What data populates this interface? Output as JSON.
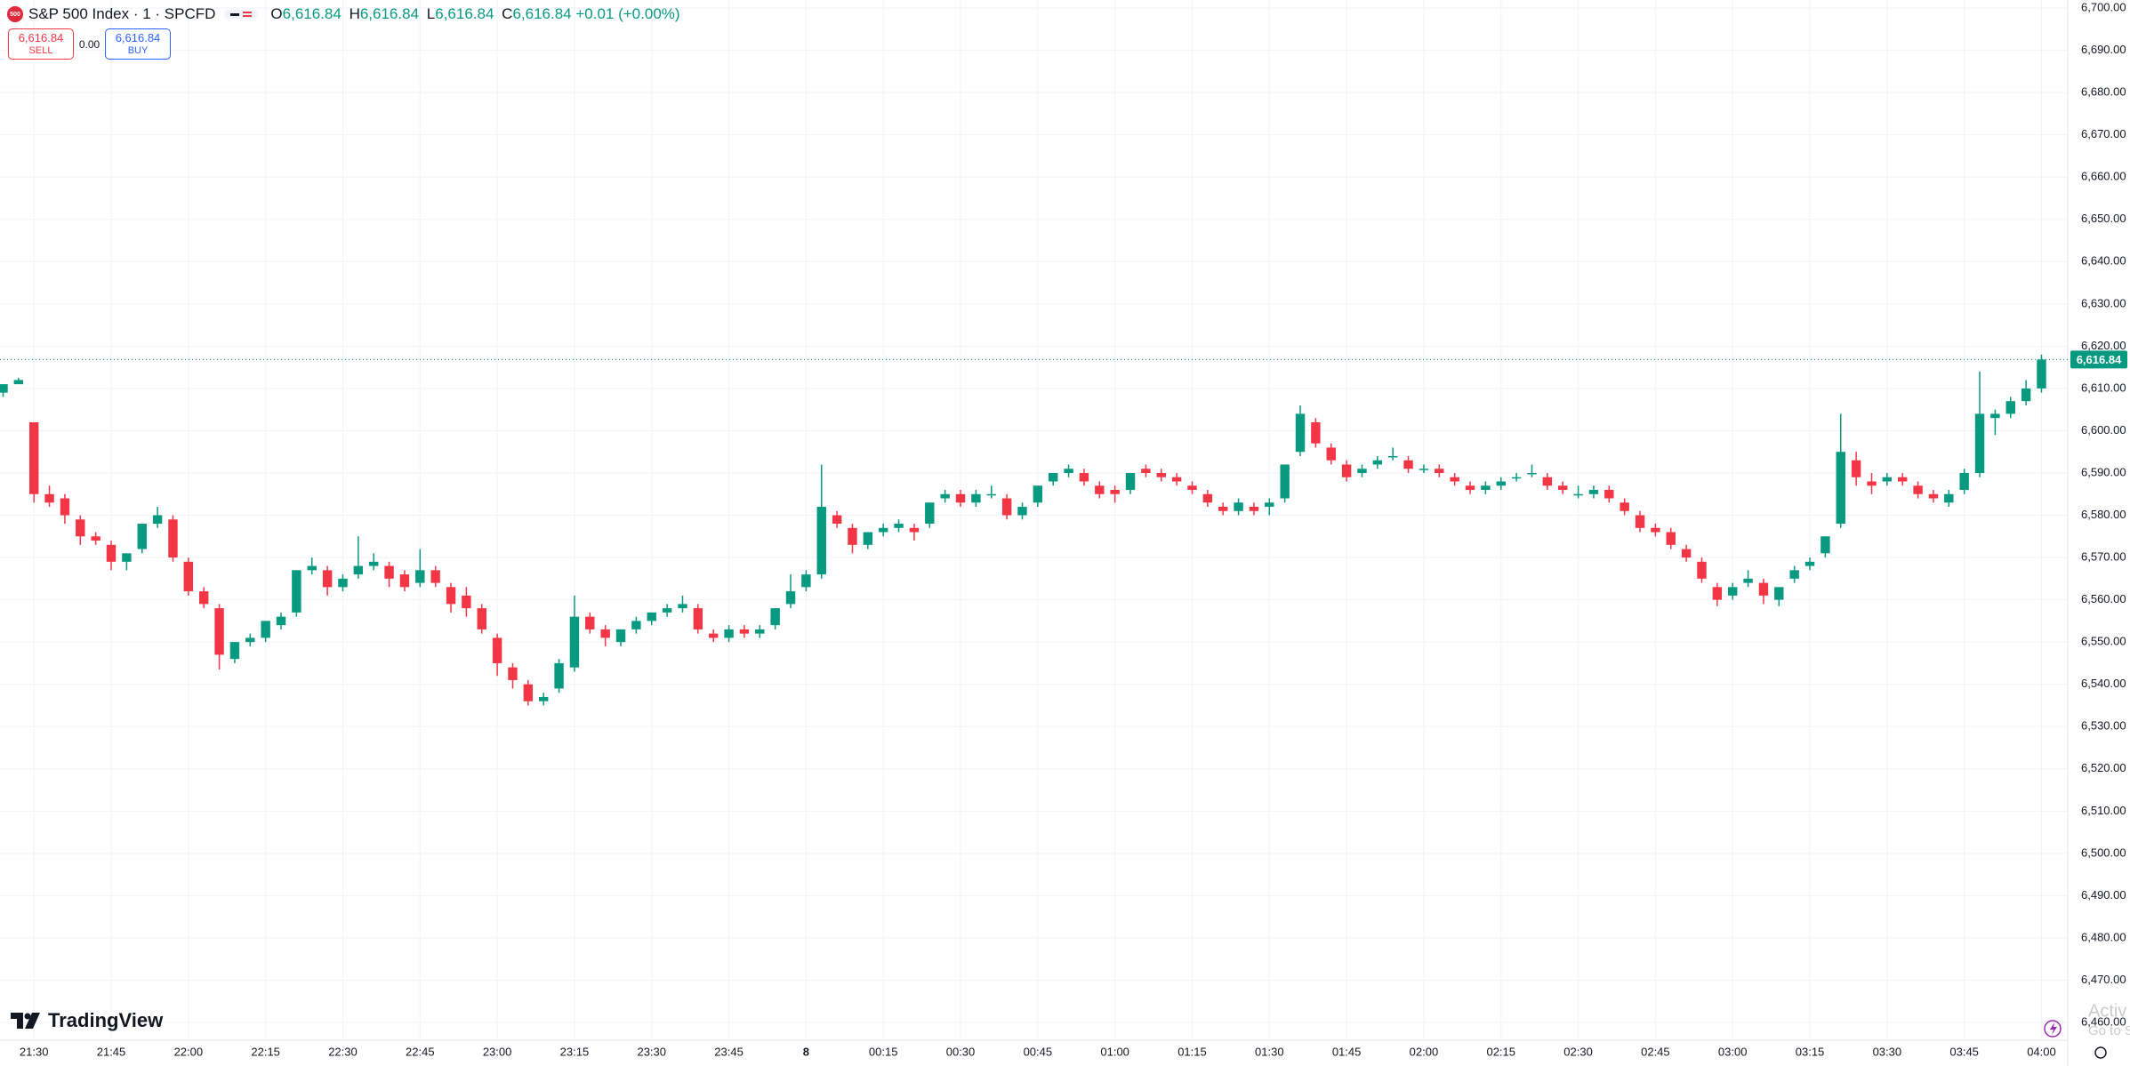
{
  "header": {
    "logo": "500",
    "symbol": "S&P 500 Index · 1 · SPCFD",
    "ohlc": [
      {
        "label": "O",
        "value": "6,616.84"
      },
      {
        "label": "H",
        "value": "6,616.84"
      },
      {
        "label": "L",
        "value": "6,616.84"
      },
      {
        "label": "C",
        "value": "6,616.84"
      }
    ],
    "change": "+0.01 (+0.00%)"
  },
  "trade": {
    "sell_price": "6,616.84",
    "sell": "SELL",
    "spread": "0.00",
    "buy_price": "6,616.84",
    "buy": "BUY"
  },
  "brand": "TradingView",
  "watermark": [
    "Activ",
    "Go to S"
  ],
  "chart_data": {
    "type": "candlestick",
    "up_color": "#089981",
    "down_color": "#f23645",
    "grid": true,
    "last_price": {
      "value": 6616.84,
      "label": "6,616.84"
    },
    "xlim": [
      -0.2,
      133.7
    ],
    "xticks": [
      {
        "value": 2,
        "label": "21:30"
      },
      {
        "value": 7,
        "label": "21:45"
      },
      {
        "value": 12,
        "label": "22:00"
      },
      {
        "value": 17,
        "label": "22:15"
      },
      {
        "value": 22,
        "label": "22:30"
      },
      {
        "value": 27,
        "label": "22:45"
      },
      {
        "value": 32,
        "label": "23:00"
      },
      {
        "value": 37,
        "label": "23:15"
      },
      {
        "value": 42,
        "label": "23:30"
      },
      {
        "value": 47,
        "label": "23:45"
      },
      {
        "value": 52,
        "label": "8"
      },
      {
        "value": 57,
        "label": "00:15"
      },
      {
        "value": 62,
        "label": "00:30"
      },
      {
        "value": 67,
        "label": "00:45"
      },
      {
        "value": 72,
        "label": "01:00"
      },
      {
        "value": 77,
        "label": "01:15"
      },
      {
        "value": 82,
        "label": "01:30"
      },
      {
        "value": 87,
        "label": "01:45"
      },
      {
        "value": 92,
        "label": "02:00"
      },
      {
        "value": 97,
        "label": "02:15"
      },
      {
        "value": 102,
        "label": "02:30"
      },
      {
        "value": 107,
        "label": "02:45"
      },
      {
        "value": 112,
        "label": "03:00"
      },
      {
        "value": 117,
        "label": "03:15"
      },
      {
        "value": 122,
        "label": "03:30"
      },
      {
        "value": 127,
        "label": "03:45"
      },
      {
        "value": 132,
        "label": "04:00"
      }
    ],
    "ylim": [
      6455.8,
      6701.9
    ],
    "yticks": [
      {
        "value": 6460,
        "label": "6,460.00"
      },
      {
        "value": 6470,
        "label": "6,470.00"
      },
      {
        "value": 6480,
        "label": "6,480.00"
      },
      {
        "value": 6490,
        "label": "6,490.00"
      },
      {
        "value": 6500,
        "label": "6,500.00"
      },
      {
        "value": 6510,
        "label": "6,510.00"
      },
      {
        "value": 6520,
        "label": "6,520.00"
      },
      {
        "value": 6530,
        "label": "6,530.00"
      },
      {
        "value": 6540,
        "label": "6,540.00"
      },
      {
        "value": 6550,
        "label": "6,550.00"
      },
      {
        "value": 6560,
        "label": "6,560.00"
      },
      {
        "value": 6570,
        "label": "6,570.00"
      },
      {
        "value": 6580,
        "label": "6,580.00"
      },
      {
        "value": 6590,
        "label": "6,590.00"
      },
      {
        "value": 6600,
        "label": "6,600.00"
      },
      {
        "value": 6610,
        "label": "6,610.00"
      },
      {
        "value": 6620,
        "label": "6,620.00"
      },
      {
        "value": 6630,
        "label": "6,630.00"
      },
      {
        "value": 6640,
        "label": "6,640.00"
      },
      {
        "value": 6650,
        "label": "6,650.00"
      },
      {
        "value": 6660,
        "label": "6,660.00"
      },
      {
        "value": 6670,
        "label": "6,670.00"
      },
      {
        "value": 6680,
        "label": "6,680.00"
      },
      {
        "value": 6690,
        "label": "6,690.00"
      },
      {
        "value": 6700,
        "label": "6,700.00"
      }
    ],
    "values": [
      [
        6609,
        6611,
        6608,
        6611
      ],
      [
        6611,
        6612.5,
        6611,
        6612
      ],
      [
        6602,
        6602,
        6583,
        6585
      ],
      [
        6585,
        6587,
        6582,
        6583
      ],
      [
        6584,
        6585,
        6578,
        6580
      ],
      [
        6579,
        6580,
        6573,
        6575
      ],
      [
        6575,
        6576,
        6573,
        6574
      ],
      [
        6573,
        6574,
        6567,
        6569
      ],
      [
        6569,
        6571,
        6567,
        6571
      ],
      [
        6572,
        6578,
        6571,
        6578
      ],
      [
        6578,
        6582,
        6577,
        6580
      ],
      [
        6579,
        6580,
        6569,
        6570
      ],
      [
        6569,
        6570,
        6561,
        6562
      ],
      [
        6562,
        6563,
        6558,
        6559
      ],
      [
        6558,
        6559,
        6543.5,
        6547
      ],
      [
        6546,
        6550,
        6545,
        6550
      ],
      [
        6550,
        6552,
        6549,
        6551
      ],
      [
        6551,
        6555,
        6550,
        6555
      ],
      [
        6554,
        6557,
        6553,
        6556
      ],
      [
        6557,
        6567,
        6556,
        6567
      ],
      [
        6567,
        6570,
        6566,
        6568
      ],
      [
        6567,
        6568,
        6561,
        6563
      ],
      [
        6563,
        6566,
        6562,
        6565
      ],
      [
        6566,
        6575,
        6565,
        6568
      ],
      [
        6568,
        6571,
        6567,
        6569
      ],
      [
        6568,
        6569,
        6563,
        6565
      ],
      [
        6566,
        6567,
        6562,
        6563
      ],
      [
        6564,
        6572,
        6563,
        6567
      ],
      [
        6567,
        6568,
        6563,
        6564
      ],
      [
        6563,
        6564,
        6557,
        6559
      ],
      [
        6561,
        6563,
        6556,
        6558
      ],
      [
        6558,
        6559,
        6552,
        6553
      ],
      [
        6551,
        6552,
        6542,
        6545
      ],
      [
        6544,
        6545,
        6539,
        6541
      ],
      [
        6540,
        6541,
        6535,
        6536
      ],
      [
        6536,
        6538,
        6535,
        6537
      ],
      [
        6539,
        6546,
        6538,
        6545
      ],
      [
        6544,
        6561,
        6543,
        6556
      ],
      [
        6556,
        6557,
        6552,
        6553
      ],
      [
        6553,
        6554,
        6549,
        6551
      ],
      [
        6550,
        6553,
        6549,
        6553
      ],
      [
        6553,
        6556,
        6552,
        6555
      ],
      [
        6555,
        6557,
        6554,
        6557
      ],
      [
        6557,
        6559,
        6556,
        6558
      ],
      [
        6558,
        6561,
        6557,
        6559
      ],
      [
        6558,
        6559,
        6552,
        6553
      ],
      [
        6552,
        6553,
        6550,
        6551
      ],
      [
        6551,
        6554,
        6550,
        6553
      ],
      [
        6553,
        6554,
        6551,
        6552
      ],
      [
        6552,
        6554,
        6551,
        6553
      ],
      [
        6554,
        6558,
        6553,
        6558
      ],
      [
        6559,
        6566,
        6558,
        6562
      ],
      [
        6563,
        6567,
        6562,
        6566
      ],
      [
        6566,
        6592,
        6565,
        6582
      ],
      [
        6580,
        6581,
        6577,
        6578
      ],
      [
        6577,
        6578,
        6571,
        6573
      ],
      [
        6573,
        6576,
        6572,
        6576
      ],
      [
        6576,
        6578,
        6575,
        6577
      ],
      [
        6577,
        6579,
        6576,
        6578
      ],
      [
        6577,
        6578,
        6574,
        6576
      ],
      [
        6578,
        6583,
        6577,
        6583
      ],
      [
        6584,
        6586,
        6583,
        6585
      ],
      [
        6585,
        6586,
        6582,
        6583
      ],
      [
        6583,
        6586,
        6582,
        6585
      ],
      [
        6585,
        6587,
        6584,
        6585
      ],
      [
        6584,
        6585,
        6579,
        6580
      ],
      [
        6580,
        6583,
        6579,
        6582
      ],
      [
        6583,
        6587,
        6582,
        6587
      ],
      [
        6588,
        6590,
        6587,
        6590
      ],
      [
        6590,
        6592,
        6589,
        6591
      ],
      [
        6590,
        6591,
        6587,
        6588
      ],
      [
        6587,
        6588,
        6584,
        6585
      ],
      [
        6586,
        6587,
        6583,
        6585
      ],
      [
        6586,
        6590,
        6585,
        6590
      ],
      [
        6591,
        6592,
        6589,
        6590
      ],
      [
        6590,
        6591,
        6588,
        6589
      ],
      [
        6589,
        6590,
        6587,
        6588
      ],
      [
        6587,
        6588,
        6585,
        6586
      ],
      [
        6585,
        6586,
        6582,
        6583
      ],
      [
        6582,
        6583,
        6580,
        6581
      ],
      [
        6581,
        6584,
        6580,
        6583
      ],
      [
        6582,
        6583,
        6580,
        6581
      ],
      [
        6582,
        6584,
        6580,
        6583
      ],
      [
        6584,
        6592,
        6583,
        6592
      ],
      [
        6595,
        6606,
        6594,
        6604
      ],
      [
        6602,
        6603,
        6596,
        6597
      ],
      [
        6596,
        6597,
        6592,
        6593
      ],
      [
        6592,
        6593,
        6588,
        6589
      ],
      [
        6590,
        6592,
        6589,
        6591
      ],
      [
        6592,
        6594,
        6591,
        6593
      ],
      [
        6594,
        6596,
        6593,
        6594
      ],
      [
        6593,
        6594,
        6590,
        6591
      ],
      [
        6591,
        6592,
        6590,
        6591
      ],
      [
        6591,
        6592,
        6589,
        6590
      ],
      [
        6589,
        6590,
        6587,
        6588
      ],
      [
        6587,
        6588,
        6585,
        6586
      ],
      [
        6586,
        6588,
        6585,
        6587
      ],
      [
        6587,
        6589,
        6586,
        6588
      ],
      [
        6589,
        6590,
        6588,
        6589
      ],
      [
        6590,
        6592,
        6589,
        6590
      ],
      [
        6589,
        6590,
        6586,
        6587
      ],
      [
        6587,
        6588,
        6585,
        6586
      ],
      [
        6585,
        6587,
        6584,
        6585
      ],
      [
        6585,
        6587,
        6584,
        6586
      ],
      [
        6586,
        6587,
        6583,
        6584
      ],
      [
        6583,
        6584,
        6580,
        6581
      ],
      [
        6580,
        6581,
        6576,
        6577
      ],
      [
        6577,
        6578,
        6575,
        6576
      ],
      [
        6576,
        6577,
        6572,
        6573
      ],
      [
        6572,
        6573,
        6569,
        6570
      ],
      [
        6569,
        6570,
        6564,
        6565
      ],
      [
        6563,
        6564,
        6558.5,
        6560
      ],
      [
        6561,
        6564,
        6560,
        6563
      ],
      [
        6564,
        6567,
        6563,
        6565
      ],
      [
        6564,
        6565,
        6559,
        6561
      ],
      [
        6560,
        6563,
        6558.5,
        6563
      ],
      [
        6565,
        6568,
        6564,
        6567
      ],
      [
        6568,
        6570,
        6567,
        6569
      ],
      [
        6571,
        6575,
        6570,
        6575
      ],
      [
        6578,
        6604,
        6577,
        6595
      ],
      [
        6593,
        6595,
        6587,
        6589
      ],
      [
        6588,
        6590,
        6585,
        6587
      ],
      [
        6588,
        6590,
        6587,
        6589
      ],
      [
        6589,
        6590,
        6587,
        6588
      ],
      [
        6587,
        6588,
        6584,
        6585
      ],
      [
        6585,
        6586,
        6583,
        6584
      ],
      [
        6583,
        6586,
        6582,
        6585
      ],
      [
        6586,
        6591,
        6585,
        6590
      ],
      [
        6590,
        6614,
        6589,
        6604
      ],
      [
        6603,
        6605,
        6599,
        6604
      ],
      [
        6604,
        6608,
        6603,
        6607
      ],
      [
        6607,
        6612,
        6606,
        6610
      ],
      [
        6610,
        6618,
        6609,
        6616.84
      ]
    ]
  }
}
